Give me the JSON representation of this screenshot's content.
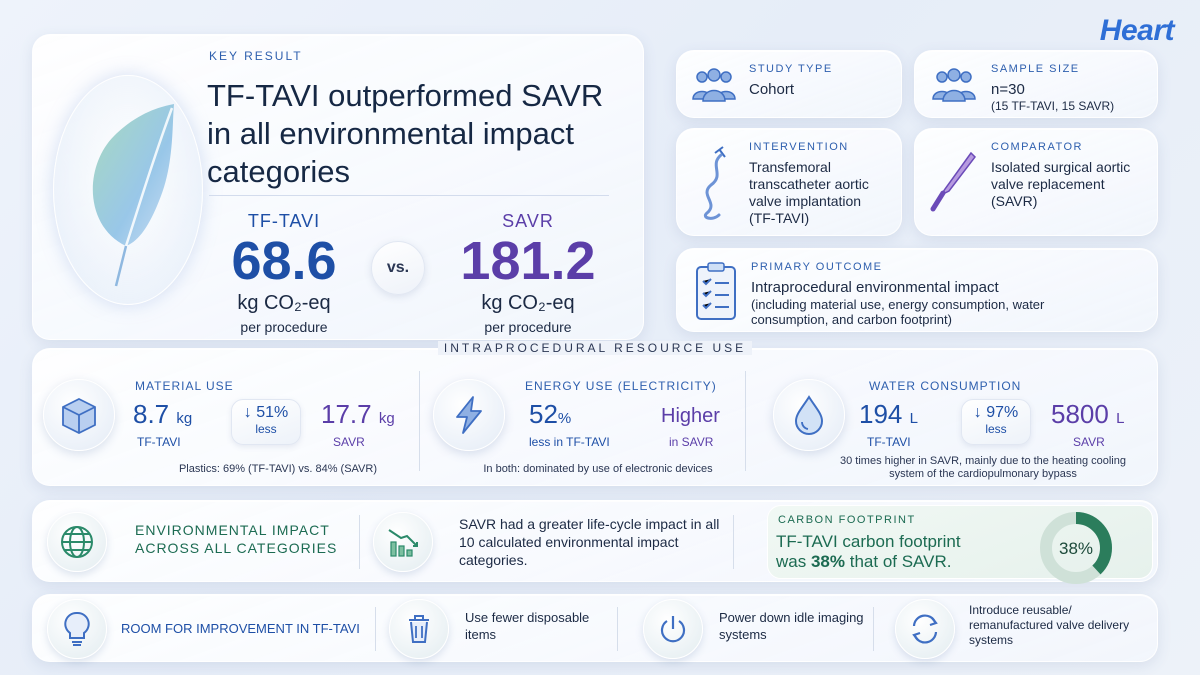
{
  "brand": "Heart",
  "hero": {
    "label": "KEY RESULT",
    "title": "TF-TAVI outperformed SAVR in all environmental impact categories",
    "left": {
      "label": "TF-TAVI",
      "value": "68.6",
      "unit": "kg CO₂-eq",
      "sub": "per procedure"
    },
    "vs": "vs.",
    "right": {
      "label": "SAVR",
      "value": "181.2",
      "unit": "kg CO₂-eq",
      "sub": "per procedure"
    }
  },
  "study_type": {
    "label": "STUDY TYPE",
    "value": "Cohort",
    "icon": "people-icon"
  },
  "sample_size": {
    "label": "SAMPLE SIZE",
    "value": "n=30",
    "detail": "(15 TF-TAVI, 15 SAVR)",
    "icon": "people-icon"
  },
  "intervention": {
    "label": "INTERVENTION",
    "value": "Transfemoral transcatheter aortic valve implantation (TF-TAVI)",
    "icon": "catheter-icon"
  },
  "comparator": {
    "label": "COMPARATOR",
    "value": "Isolated surgical aortic valve replacement (SAVR)",
    "icon": "scalpel-icon"
  },
  "primary_outcome": {
    "label": "PRIMARY OUTCOME",
    "value": "Intraprocedural environmental impact",
    "detail": "(including material use, energy consumption, water consumption, and carbon footprint)",
    "icon": "clipboard-icon"
  },
  "resource": {
    "title": "INTRAPROCEDURAL RESOURCE USE",
    "material": {
      "label": "MATERIAL USE",
      "tavi_value": "8.7",
      "tavi_unit": "kg",
      "tavi_lbl": "TF-TAVI",
      "pct": "↓ 51%",
      "pct_lbl": "less",
      "savr_value": "17.7",
      "savr_unit": "kg",
      "savr_lbl": "SAVR",
      "note": "Plastics: 69% (TF-TAVI) vs. 84% (SAVR)",
      "icon": "box-icon"
    },
    "energy": {
      "label": "ENERGY USE (ELECTRICITY)",
      "value": "52",
      "unit": "%",
      "value_lbl": "less in TF-TAVI",
      "savr_value": "Higher",
      "savr_lbl": "in SAVR",
      "note": "In both: dominated by use of electronic devices",
      "icon": "lightning-icon"
    },
    "water": {
      "label": "WATER CONSUMPTION",
      "tavi_value": "194",
      "tavi_unit": "L",
      "tavi_lbl": "TF-TAVI",
      "pct": "↓ 97%",
      "pct_lbl": "less",
      "savr_value": "5800",
      "savr_unit": "L",
      "savr_lbl": "SAVR",
      "note": "30 times higher in SAVR, mainly due to the heating cooling system of the cardiopulmonary bypass",
      "icon": "water-drop-icon"
    }
  },
  "impact": {
    "label": "ENVIRONMENTAL IMPACT ACROSS ALL CATEGORIES",
    "text": "SAVR had a greater life-cycle impact in all 10 calculated environmental impact categories.",
    "carbon_label": "CARBON FOOTPRINT",
    "carbon_text_a": "TF-TAVI carbon footprint",
    "carbon_text_b": "was",
    "carbon_pct": "38%",
    "carbon_text_c": "that of SAVR.",
    "donut_label": "38%",
    "donut_fraction": 0.38
  },
  "improvement": {
    "label": "ROOM FOR IMPROVEMENT IN TF-TAVI",
    "items": [
      {
        "text": "Use fewer disposable items",
        "icon": "trash-icon"
      },
      {
        "text": "Power down idle imaging systems",
        "icon": "power-icon"
      },
      {
        "text": "Introduce reusable/ remanufactured valve delivery systems",
        "icon": "recycle-icon"
      }
    ]
  },
  "colors": {
    "blue": "#1e4fa6",
    "purple": "#5b3ea8",
    "green": "#1c6b52",
    "accent": "#2e5fae"
  }
}
